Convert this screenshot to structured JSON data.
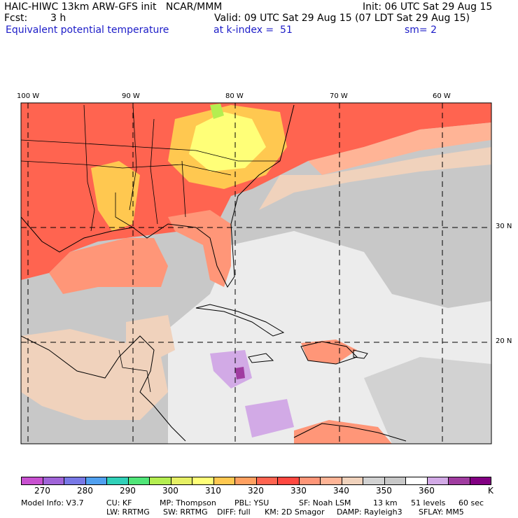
{
  "header": {
    "title": "HAIC-HIWC 13km ARW-GFS init   NCAR/MMM",
    "init": "Init: 06 UTC Sat 29 Aug 15",
    "fcst_label": "Fcst:",
    "fcst_value": "3 h",
    "valid": "Valid: 09 UTC Sat 29 Aug 15 (07 LDT Sat 29 Aug 15)",
    "field": "Equivalent potential temperature",
    "level": "at k-index =  51",
    "smooth": "sm= 2"
  },
  "axes": {
    "lon_labels": [
      "100 W",
      "90 W",
      "80 W",
      "70 W",
      "60 W"
    ],
    "lat_labels": [
      "30 N",
      "20 N"
    ]
  },
  "colorbar": {
    "tick_labels": [
      "270",
      "280",
      "290",
      "300",
      "310",
      "320",
      "330",
      "340",
      "350",
      "360"
    ],
    "unit": "K",
    "colors": [
      "#c850d0",
      "#a064d8",
      "#7878e6",
      "#50a0f0",
      "#30d0b8",
      "#50e678",
      "#b4ee50",
      "#e6f064",
      "#ffff78",
      "#ffc850",
      "#ffa060",
      "#ff6450",
      "#ff4840",
      "#ff9678",
      "#ffb496",
      "#f0d2bc",
      "#d2d2d2",
      "#c8c8c8",
      "#ffffff",
      "#d2aae6",
      "#a03ca0",
      "#820082"
    ]
  },
  "footer": {
    "line1": [
      "Model Info: V3.7",
      "CU: KF",
      "MP: Thompson",
      "PBL: YSU",
      "SF: Noah LSM",
      "13 km",
      "51 levels",
      "60 sec"
    ],
    "line2": [
      "LW: RRTMG",
      "SW: RRTMG",
      "DIFF: full",
      "KM: 2D Smagor",
      "DAMP: Rayleigh3",
      "SFLAY: MM5"
    ]
  }
}
